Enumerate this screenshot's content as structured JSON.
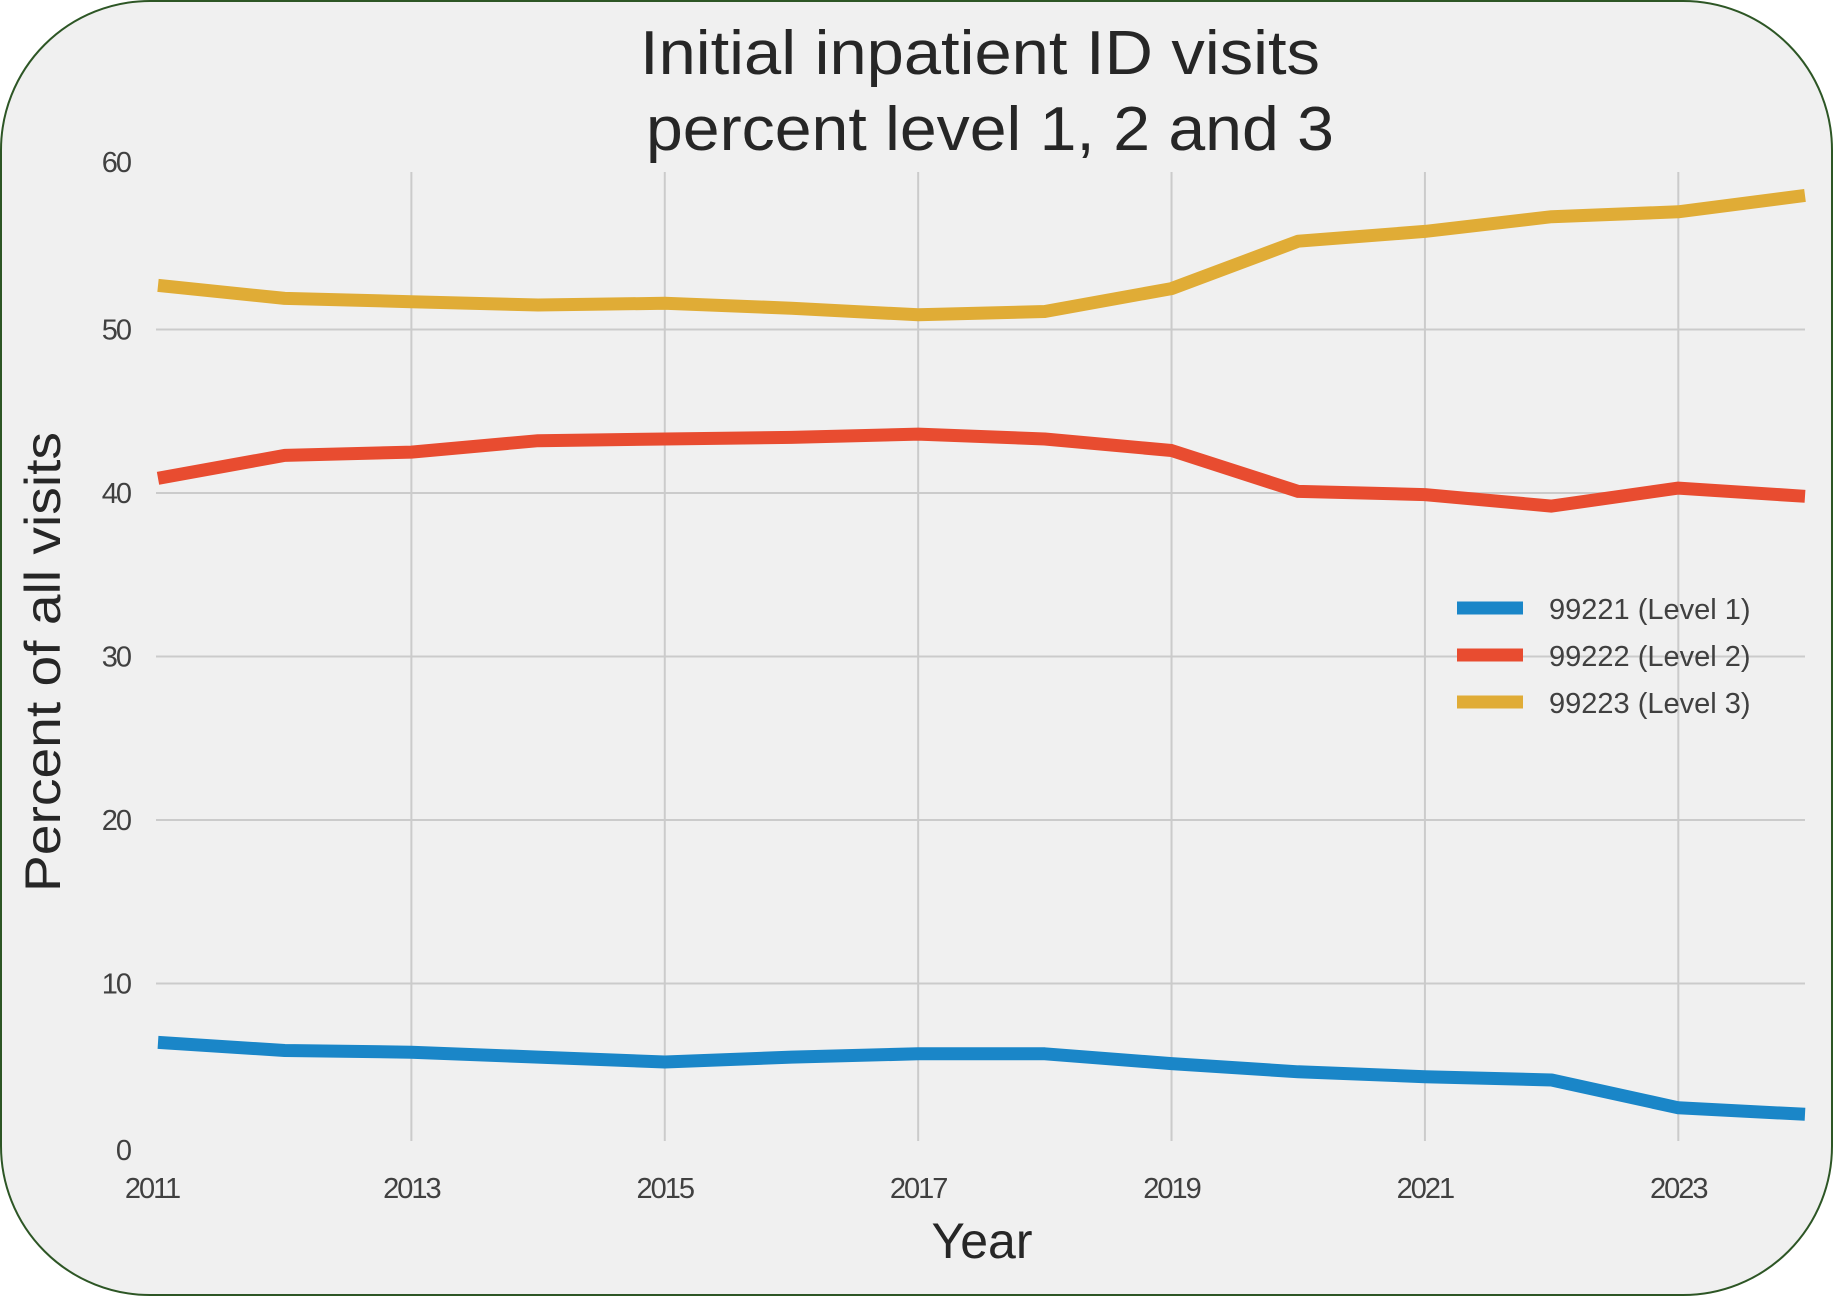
{
  "chart_data": {
    "type": "line",
    "title": "Initial inpatient ID visits\npercent level 1, 2 and 3",
    "title_lines": [
      "Initial inpatient ID visits",
      "percent level 1, 2 and 3"
    ],
    "xlabel": "Year",
    "ylabel": "Percent of all visits",
    "x": [
      2011,
      2012,
      2013,
      2014,
      2015,
      2016,
      2017,
      2018,
      2019,
      2020,
      2021,
      2022,
      2023,
      2024
    ],
    "xlim": [
      2011,
      2024
    ],
    "ylim": [
      0,
      60
    ],
    "xticks": [
      2011,
      2013,
      2015,
      2017,
      2019,
      2021,
      2023
    ],
    "yticks": [
      0,
      10,
      20,
      30,
      40,
      50,
      60
    ],
    "grid": true,
    "legend_position": "center-right",
    "series": [
      {
        "name": "99221 (Level 1)",
        "color": "#1a86c8",
        "values": [
          6.4,
          5.9,
          5.8,
          5.5,
          5.2,
          5.5,
          5.7,
          5.7,
          5.1,
          4.6,
          4.3,
          4.1,
          2.4,
          2.0
        ]
      },
      {
        "name": "99222 (Level 2)",
        "color": "#e84c30",
        "values": [
          40.9,
          42.3,
          42.5,
          43.2,
          43.3,
          43.4,
          43.6,
          43.3,
          42.6,
          40.1,
          39.9,
          39.2,
          40.3,
          39.8
        ]
      },
      {
        "name": "99223 (Level 3)",
        "color": "#e0ac36",
        "values": [
          52.7,
          51.9,
          51.7,
          51.5,
          51.6,
          51.3,
          50.9,
          51.1,
          52.5,
          55.4,
          56.0,
          56.9,
          57.2,
          58.2
        ]
      }
    ]
  },
  "frame": {
    "border_color": "#2d5625",
    "background_color": "#f0f0f0"
  }
}
